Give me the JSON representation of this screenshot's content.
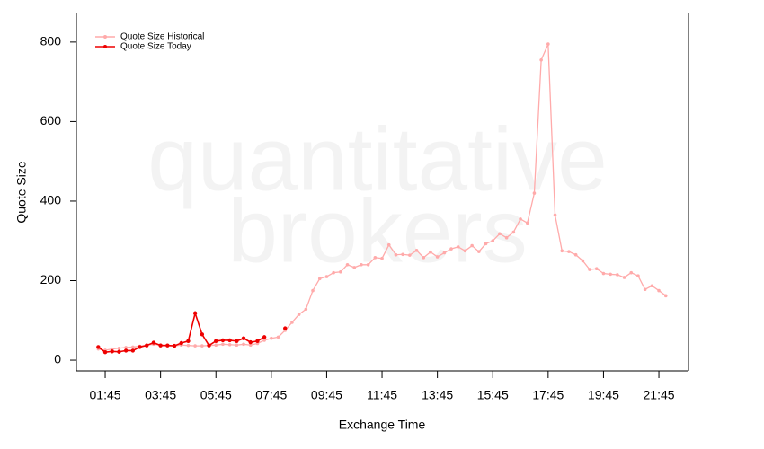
{
  "chart_data": {
    "type": "line",
    "xlabel": "Exchange Time",
    "ylabel": "Quote Size",
    "watermark": [
      "quantitative",
      "brokers"
    ],
    "legend": "upper left",
    "x": [
      1.5,
      1.75,
      2,
      2.25,
      2.5,
      2.75,
      3,
      3.25,
      3.5,
      3.75,
      4,
      4.25,
      4.5,
      4.75,
      5,
      5.25,
      5.5,
      5.75,
      6,
      6.25,
      6.5,
      6.75,
      7,
      7.25,
      7.5,
      7.75,
      8,
      8.25,
      8.5,
      8.75,
      9,
      9.25,
      9.5,
      9.75,
      10,
      10.25,
      10.5,
      10.75,
      11,
      11.25,
      11.5,
      11.75,
      12,
      12.25,
      12.5,
      12.75,
      13,
      13.25,
      13.5,
      13.75,
      14,
      14.25,
      14.5,
      14.75,
      15,
      15.25,
      15.5,
      15.75,
      16,
      16.25,
      16.5,
      16.75,
      17,
      17.25,
      17.5,
      17.75,
      18,
      18.25,
      18.5,
      18.75,
      19,
      19.25,
      19.5,
      19.75,
      20,
      20.25,
      20.5,
      20.75,
      21,
      21.25,
      21.5,
      21.75,
      22
    ],
    "series": [
      {
        "name": "Quote Size Historical",
        "color": "#ffaaaa",
        "values": [
          28,
          25,
          28,
          30,
          32,
          33,
          35,
          38,
          40,
          38,
          37,
          36,
          38,
          37,
          36,
          36,
          37,
          38,
          40,
          39,
          38,
          40,
          38,
          42,
          50,
          55,
          58,
          75,
          95,
          115,
          128,
          175,
          205,
          210,
          220,
          222,
          240,
          233,
          240,
          240,
          258,
          256,
          290,
          265,
          266,
          264,
          276,
          258,
          272,
          260,
          270,
          280,
          285,
          275,
          288,
          273,
          293,
          300,
          318,
          308,
          322,
          355,
          345,
          420,
          755,
          795,
          365,
          275,
          273,
          265,
          250,
          228,
          230,
          218,
          216,
          215,
          208,
          220,
          212,
          178,
          187,
          175,
          162
        ]
      },
      {
        "name": "Quote Size Today",
        "color": "#ee0000",
        "values": [
          33,
          20,
          22,
          21,
          24,
          24,
          33,
          37,
          44,
          37,
          37,
          36,
          43,
          48,
          118,
          65,
          37,
          48,
          50,
          50,
          48,
          55,
          45,
          48,
          58,
          null,
          null,
          80,
          null,
          null,
          null,
          null,
          null,
          null,
          null,
          null,
          null,
          null,
          null,
          null,
          null,
          null,
          null,
          null,
          null,
          null,
          null,
          null,
          null,
          null,
          null,
          null,
          null,
          null,
          null,
          null,
          null,
          null,
          null,
          null,
          null,
          null,
          null,
          null,
          null,
          null,
          null,
          null,
          null,
          null,
          null,
          null,
          null,
          null,
          null,
          null,
          null,
          null,
          null,
          null,
          null,
          null,
          null
        ]
      }
    ],
    "xlim": [
      0.71,
      22.82
    ],
    "xticks": [
      {
        "value": 1.75,
        "label": "01:45"
      },
      {
        "value": 3.75,
        "label": "03:45"
      },
      {
        "value": 5.75,
        "label": "05:45"
      },
      {
        "value": 7.75,
        "label": "07:45"
      },
      {
        "value": 9.75,
        "label": "09:45"
      },
      {
        "value": 11.75,
        "label": "11:45"
      },
      {
        "value": 13.75,
        "label": "13:45"
      },
      {
        "value": 15.75,
        "label": "15:45"
      },
      {
        "value": 17.75,
        "label": "17:45"
      },
      {
        "value": 19.75,
        "label": "19:45"
      },
      {
        "value": 21.75,
        "label": "21:45"
      }
    ],
    "ylim": [
      -27,
      872
    ],
    "yticks": [
      0,
      200,
      400,
      600,
      800
    ]
  }
}
